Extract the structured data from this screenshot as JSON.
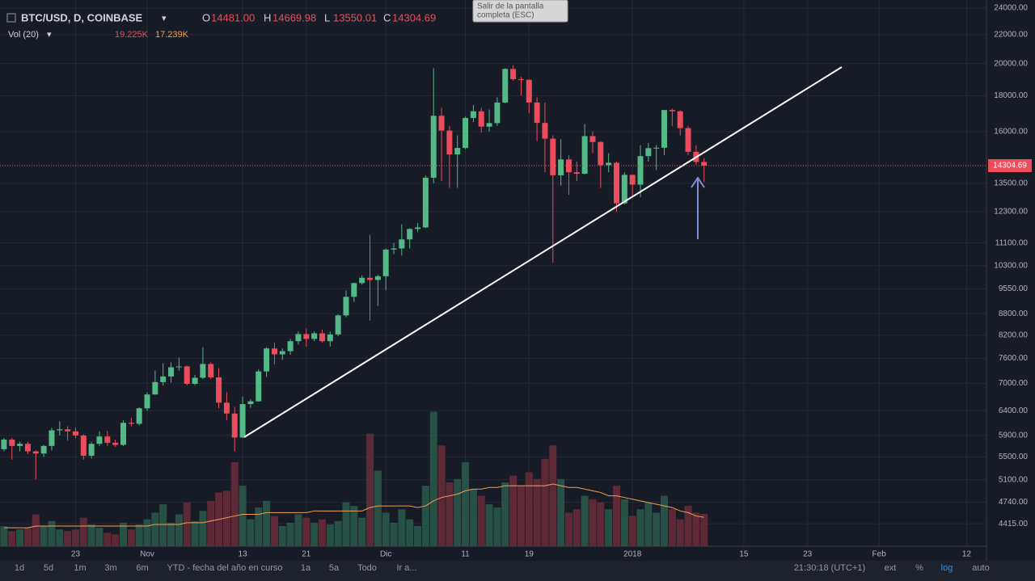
{
  "chart_data": {
    "type": "candlestick",
    "header": {
      "symbol": "BTC/USD, D, COINBASE",
      "ohlc": [
        {
          "key": "O",
          "value": 14481,
          "label": "14481.00"
        },
        {
          "key": "H",
          "value": 14669.98,
          "label": "14669.98"
        },
        {
          "key": "L",
          "value": 13550.01,
          "label": "13550.01"
        },
        {
          "key": "C",
          "value": 14304.69,
          "label": "14304.69"
        }
      ],
      "volume": {
        "name": "Vol (20)",
        "value": 19.225,
        "label": "19.225K"
      },
      "ma": {
        "value": 17.239,
        "label": "17.239K"
      }
    },
    "tooltip": [
      "Salir de la pantalla",
      "completa (ESC)"
    ],
    "up_color": "#53b987",
    "down_color": "#eb4d5c",
    "volume_up_color": "#2b5a4c",
    "volume_down_color": "#6a2c3a",
    "ma_color": "#f0a050",
    "log_scale": true,
    "grid": true,
    "open": [
      5640,
      5820,
      5700,
      5740,
      5600,
      5560,
      5700,
      6000,
      6020,
      5980,
      5900,
      5520,
      5740,
      5880,
      5760,
      5720,
      6150,
      6130,
      6450,
      6750,
      7030,
      7160,
      7380,
      7400,
      6990,
      7130,
      7460,
      7140,
      6570,
      6340,
      5860,
      6540,
      6600,
      7280,
      7850,
      7700,
      7780,
      8040,
      8230,
      8100,
      8250,
      8040,
      8220,
      8750,
      9300,
      9730,
      9900,
      9830,
      9950,
      10860,
      10900,
      11230,
      11620,
      11680,
      13750,
      16850,
      16050,
      14840,
      15160,
      16730,
      17100,
      16260,
      16450,
      17600,
      19650,
      19000,
      18960,
      17600,
      16460,
      15630,
      13860,
      14600,
      14000,
      13930,
      15760,
      15460,
      14330,
      14440,
      12640,
      13880,
      13440,
      14760,
      15150,
      15170,
      17170,
      17100,
      16180,
      14970,
      14481
    ],
    "high": [
      5850,
      5850,
      5780,
      5780,
      5620,
      5720,
      6050,
      6180,
      6080,
      6050,
      5920,
      5780,
      5980,
      5990,
      5820,
      6200,
      6250,
      6470,
      6800,
      7300,
      7480,
      7500,
      7620,
      7420,
      7200,
      7880,
      7500,
      7360,
      6800,
      6480,
      6700,
      6650,
      7330,
      7880,
      8000,
      7850,
      8100,
      8300,
      8380,
      8300,
      8350,
      8300,
      8780,
      9500,
      9740,
      9980,
      11400,
      10000,
      10900,
      11100,
      11800,
      11650,
      11850,
      13850,
      19700,
      17300,
      16300,
      15800,
      16800,
      17450,
      17300,
      17200,
      17900,
      19700,
      19890,
      19150,
      19000,
      17900,
      17600,
      15800,
      15600,
      14800,
      14500,
      16400,
      16000,
      15500,
      14900,
      14500,
      14000,
      13900,
      15300,
      15400,
      15300,
      17180,
      17250,
      17150,
      16300,
      15300,
      14669.98
    ],
    "low": [
      5600,
      5450,
      5600,
      5550,
      5110,
      5500,
      5620,
      5900,
      5800,
      5850,
      5450,
      5470,
      5700,
      5700,
      5680,
      5700,
      6080,
      6100,
      6400,
      6740,
      6950,
      7020,
      7300,
      6950,
      6960,
      7100,
      7100,
      6450,
      6200,
      5600,
      5850,
      6460,
      6590,
      7150,
      7450,
      7560,
      7690,
      7950,
      7900,
      8040,
      8000,
      7900,
      8170,
      8700,
      9150,
      9680,
      8600,
      9020,
      9500,
      10700,
      10650,
      10900,
      11500,
      11650,
      13500,
      13600,
      13300,
      13300,
      15100,
      16500,
      15950,
      16000,
      16300,
      17550,
      18900,
      18000,
      17000,
      15500,
      14000,
      10400,
      13400,
      13000,
      13600,
      13900,
      14900,
      13300,
      14000,
      12300,
      12600,
      12900,
      12900,
      14500,
      14100,
      14800,
      16300,
      15800,
      14800,
      14350,
      13550.01
    ],
    "close": [
      5820,
      5700,
      5740,
      5600,
      5560,
      5700,
      6000,
      6020,
      5980,
      5900,
      5520,
      5740,
      5880,
      5760,
      5720,
      6150,
      6130,
      6450,
      6750,
      7030,
      7160,
      7380,
      7400,
      6990,
      7130,
      7460,
      7140,
      6570,
      6340,
      5860,
      6540,
      6600,
      7280,
      7850,
      7700,
      7780,
      8040,
      8230,
      8100,
      8250,
      8040,
      8220,
      8750,
      9300,
      9730,
      9900,
      9830,
      9950,
      10860,
      10900,
      11230,
      11620,
      11680,
      13750,
      16850,
      16050,
      14840,
      15160,
      16730,
      17100,
      16260,
      16450,
      17600,
      19650,
      19000,
      18960,
      17600,
      16460,
      15630,
      13860,
      14600,
      14000,
      13930,
      15760,
      15460,
      14330,
      14440,
      12640,
      13880,
      13440,
      14760,
      15150,
      15170,
      17170,
      17100,
      16180,
      14970,
      14480,
      14304.69
    ],
    "volume": {
      "values": [
        12,
        9,
        10,
        11,
        19,
        12,
        15,
        10,
        9,
        10,
        17,
        13,
        11,
        8,
        7,
        14,
        10,
        13,
        16,
        20,
        25,
        14,
        19,
        26,
        15,
        21,
        27,
        32,
        33,
        50,
        36,
        16,
        23,
        27,
        18,
        12,
        14,
        19,
        17,
        14,
        16,
        13,
        15,
        26,
        24,
        17,
        67,
        45,
        20,
        14,
        22,
        16,
        12,
        36,
        80,
        60,
        38,
        40,
        50,
        34,
        30,
        25,
        23,
        38,
        42,
        36,
        44,
        40,
        52,
        60,
        40,
        20,
        22,
        30,
        28,
        26,
        22,
        36,
        28,
        18,
        22,
        26,
        20,
        30,
        22,
        16,
        24,
        20,
        19.225
      ],
      "ma": [
        11,
        11,
        11,
        11,
        12,
        12,
        12,
        12,
        12,
        12,
        12,
        12,
        12,
        12,
        12,
        12,
        12,
        12,
        12,
        13,
        13,
        13,
        13,
        14,
        14,
        14,
        15,
        16,
        17,
        18,
        19,
        19,
        19,
        20,
        20,
        20,
        20,
        20,
        20,
        21,
        21,
        21,
        21,
        21,
        21,
        21,
        23,
        24,
        24,
        24,
        24,
        24,
        23,
        24,
        27,
        29,
        30,
        31,
        33,
        34,
        34,
        35,
        35,
        36,
        36,
        36,
        36,
        36,
        36,
        37,
        36,
        35,
        35,
        34,
        33,
        32,
        30,
        30,
        29,
        28,
        27,
        26,
        25,
        24,
        23,
        21,
        20,
        18,
        17.239
      ]
    },
    "vlim": [
      0,
      325
    ],
    "xlim": [
      -0.5,
      123.5
    ],
    "xticks": [
      {
        "value": 9,
        "label": "23"
      },
      {
        "value": 18,
        "label": "Nov"
      },
      {
        "value": 30,
        "label": "13"
      },
      {
        "value": 38,
        "label": "21"
      },
      {
        "value": 48,
        "label": "Dic"
      },
      {
        "value": 58,
        "label": "11"
      },
      {
        "value": 66,
        "label": "19"
      },
      {
        "value": 79,
        "label": "2018"
      },
      {
        "value": 93,
        "label": "15"
      },
      {
        "value": 101,
        "label": "23"
      },
      {
        "value": 110,
        "label": "Feb"
      },
      {
        "value": 121,
        "label": "12"
      }
    ],
    "ylim": [
      4101,
      24640
    ],
    "yticks": [
      {
        "value": 24000,
        "label": "24000.00"
      },
      {
        "value": 22000,
        "label": "22000.00"
      },
      {
        "value": 20000,
        "label": "20000.00"
      },
      {
        "value": 18000,
        "label": "18000.00"
      },
      {
        "value": 16000,
        "label": "16000.00"
      },
      {
        "value": 13500,
        "label": "13500.00"
      },
      {
        "value": 12300,
        "label": "12300.00"
      },
      {
        "value": 11100,
        "label": "11100.00"
      },
      {
        "value": 10300,
        "label": "10300.00"
      },
      {
        "value": 9550,
        "label": "9550.00"
      },
      {
        "value": 8800,
        "label": "8800.00"
      },
      {
        "value": 8200,
        "label": "8200.00"
      },
      {
        "value": 7600,
        "label": "7600.00"
      },
      {
        "value": 7000,
        "label": "7000.00"
      },
      {
        "value": 6400,
        "label": "6400.00"
      },
      {
        "value": 5900,
        "label": "5900.00"
      },
      {
        "value": 5500,
        "label": "5500.00"
      },
      {
        "value": 5100,
        "label": "5100.00"
      },
      {
        "value": 4740,
        "label": "4740.00"
      },
      {
        "value": 4415,
        "label": "4415.00"
      }
    ],
    "toolbar": {
      "ranges": [
        "1d",
        "5d",
        "1m",
        "3m",
        "6m",
        "YTD - fecha del año en curso",
        "1a",
        "5a",
        "Todo",
        "Ir a..."
      ],
      "right": [
        "21:30:18 (UTC+1)",
        "ext",
        "%",
        "log",
        "auto"
      ]
    }
  }
}
